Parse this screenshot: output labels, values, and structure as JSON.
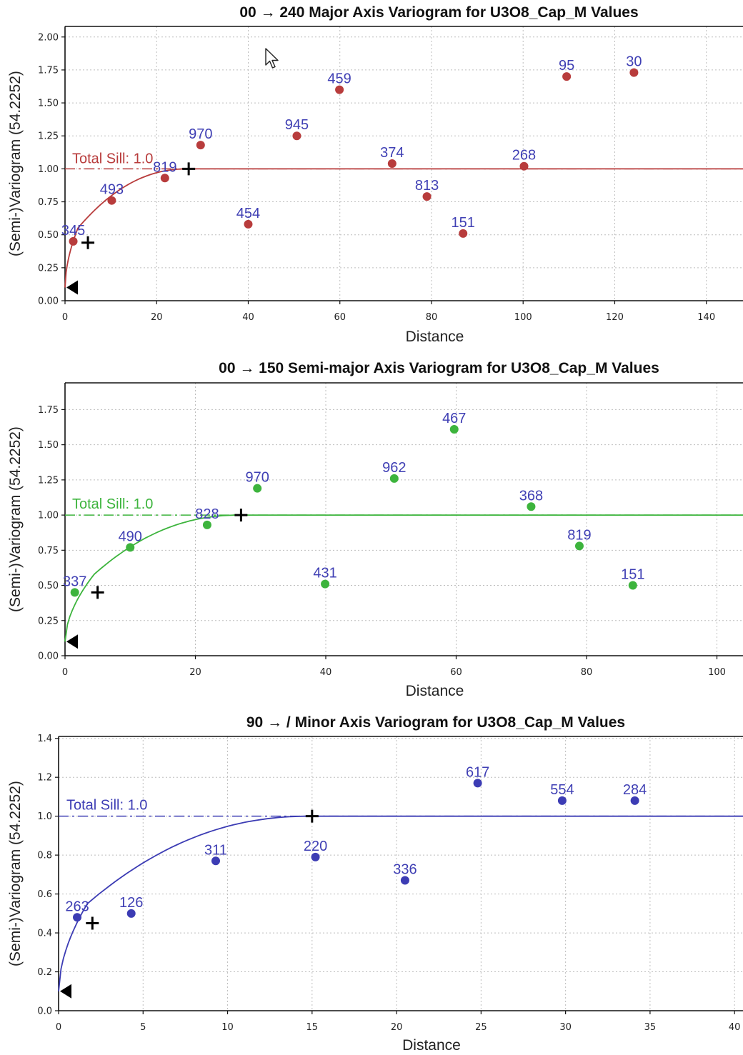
{
  "panels": [
    {
      "id": "major",
      "title": "00 → 240 Major Axis Variogram for U3O8_Cap_M Values",
      "xlabel": "Distance",
      "ylabel": "(Semi-)Variogram (54.2252)",
      "sill_label": "Total Sill: 1.0",
      "color": "#b83c3c",
      "xlim": [
        0,
        148
      ],
      "ylim": [
        0,
        2.08
      ],
      "xticks": [
        0,
        20,
        40,
        60,
        80,
        100,
        120,
        140
      ],
      "yticks": [
        0,
        0.25,
        0.5,
        0.75,
        1.0,
        1.25,
        1.5,
        1.75,
        2.0
      ],
      "ytick_decimals": 2,
      "sill": 1.0,
      "nugget": 0.1,
      "model_break": [
        2.8,
        0.55
      ],
      "range": 27,
      "cross_markers": [
        [
          5,
          0.44
        ],
        [
          27,
          1.0
        ]
      ],
      "points": [
        {
          "x": 1.8,
          "y": 0.45,
          "pairs": "345"
        },
        {
          "x": 10.2,
          "y": 0.76,
          "pairs": "493"
        },
        {
          "x": 21.8,
          "y": 0.93,
          "pairs": "819"
        },
        {
          "x": 29.6,
          "y": 1.18,
          "pairs": "970"
        },
        {
          "x": 40.0,
          "y": 0.58,
          "pairs": "454"
        },
        {
          "x": 50.6,
          "y": 1.25,
          "pairs": "945"
        },
        {
          "x": 59.9,
          "y": 1.6,
          "pairs": "459"
        },
        {
          "x": 71.4,
          "y": 1.04,
          "pairs": "374"
        },
        {
          "x": 79.0,
          "y": 0.79,
          "pairs": "813"
        },
        {
          "x": 86.9,
          "y": 0.51,
          "pairs": "151"
        },
        {
          "x": 100.2,
          "y": 1.02,
          "pairs": "268"
        },
        {
          "x": 109.5,
          "y": 1.7,
          "pairs": "95"
        },
        {
          "x": 124.2,
          "y": 1.73,
          "pairs": "30"
        }
      ]
    },
    {
      "id": "semi-major",
      "title": "00 → 150 Semi-major Axis Variogram for U3O8_Cap_M Values",
      "xlabel": "Distance",
      "ylabel": "(Semi-)Variogram (54.2252)",
      "sill_label": "Total Sill: 1.0",
      "color": "#3db43d",
      "xlim": [
        0,
        104
      ],
      "ylim": [
        0,
        1.94
      ],
      "xticks": [
        0,
        20,
        40,
        60,
        80,
        100
      ],
      "yticks": [
        0,
        0.25,
        0.5,
        0.75,
        1.0,
        1.25,
        1.5,
        1.75
      ],
      "ytick_decimals": 2,
      "sill": 1.0,
      "nugget": 0.1,
      "model_break": [
        4.5,
        0.58
      ],
      "range": 27,
      "cross_markers": [
        [
          5,
          0.45
        ],
        [
          27,
          1.0
        ]
      ],
      "points": [
        {
          "x": 1.5,
          "y": 0.45,
          "pairs": "337"
        },
        {
          "x": 10.0,
          "y": 0.77,
          "pairs": "490"
        },
        {
          "x": 21.8,
          "y": 0.93,
          "pairs": "828"
        },
        {
          "x": 29.5,
          "y": 1.19,
          "pairs": "970"
        },
        {
          "x": 39.9,
          "y": 0.51,
          "pairs": "431"
        },
        {
          "x": 50.5,
          "y": 1.26,
          "pairs": "962"
        },
        {
          "x": 59.7,
          "y": 1.61,
          "pairs": "467"
        },
        {
          "x": 71.5,
          "y": 1.06,
          "pairs": "368"
        },
        {
          "x": 78.9,
          "y": 0.78,
          "pairs": "819"
        },
        {
          "x": 87.1,
          "y": 0.5,
          "pairs": "151"
        }
      ]
    },
    {
      "id": "minor",
      "title": "90 → / Minor Axis Variogram for U3O8_Cap_M Values",
      "xlabel": "Distance",
      "ylabel": "(Semi-)Variogram (54.2252)",
      "sill_label": "Total Sill: 1.0",
      "color": "#3c3cb4",
      "xlim": [
        0,
        40.5
      ],
      "ylim": [
        0,
        1.41
      ],
      "xticks": [
        0,
        5,
        10,
        15,
        20,
        25,
        30,
        35,
        40
      ],
      "yticks": [
        0,
        0.2,
        0.4,
        0.6,
        0.8,
        1.0,
        1.2,
        1.4
      ],
      "ytick_decimals": 1,
      "sill": 1.0,
      "nugget": 0.1,
      "model_break": [
        1.7,
        0.55
      ],
      "range": 15,
      "cross_markers": [
        [
          2,
          0.45
        ],
        [
          15,
          1.0
        ]
      ],
      "points": [
        {
          "x": 1.1,
          "y": 0.48,
          "pairs": "263"
        },
        {
          "x": 4.3,
          "y": 0.5,
          "pairs": "126"
        },
        {
          "x": 9.3,
          "y": 0.77,
          "pairs": "311"
        },
        {
          "x": 15.2,
          "y": 0.79,
          "pairs": "220"
        },
        {
          "x": 20.5,
          "y": 0.67,
          "pairs": "336"
        },
        {
          "x": 24.8,
          "y": 1.17,
          "pairs": "617"
        },
        {
          "x": 29.8,
          "y": 1.08,
          "pairs": "554"
        },
        {
          "x": 34.1,
          "y": 1.08,
          "pairs": "284"
        }
      ]
    }
  ],
  "chart_data": [
    {
      "type": "scatter",
      "title": "00 → 240 Major Axis Variogram for U3O8_Cap_M Values",
      "xlabel": "Distance",
      "ylabel": "(Semi-)Variogram (54.2252)",
      "xlim": [
        0,
        148
      ],
      "ylim": [
        0,
        2.08
      ],
      "grid": true,
      "annotations": [
        "Total Sill: 1.0"
      ],
      "x": [
        1.8,
        10.2,
        21.8,
        29.6,
        40.0,
        50.6,
        59.9,
        71.4,
        79.0,
        86.9,
        100.2,
        109.5,
        124.2
      ],
      "y": [
        0.45,
        0.76,
        0.93,
        1.18,
        0.58,
        1.25,
        1.6,
        1.04,
        0.79,
        0.51,
        1.02,
        1.7,
        1.73
      ],
      "point_labels": [
        "345",
        "493",
        "819",
        "970",
        "454",
        "945",
        "459",
        "374",
        "813",
        "151",
        "268",
        "95",
        "30"
      ]
    },
    {
      "type": "scatter",
      "title": "00 → 150 Semi-major Axis Variogram for U3O8_Cap_M Values",
      "xlabel": "Distance",
      "ylabel": "(Semi-)Variogram (54.2252)",
      "xlim": [
        0,
        104
      ],
      "ylim": [
        0,
        1.94
      ],
      "grid": true,
      "annotations": [
        "Total Sill: 1.0"
      ],
      "x": [
        1.5,
        10.0,
        21.8,
        29.5,
        39.9,
        50.5,
        59.7,
        71.5,
        78.9,
        87.1
      ],
      "y": [
        0.45,
        0.77,
        0.93,
        1.19,
        0.51,
        1.26,
        1.61,
        1.06,
        0.78,
        0.5
      ],
      "point_labels": [
        "337",
        "490",
        "828",
        "970",
        "431",
        "962",
        "467",
        "368",
        "819",
        "151"
      ]
    },
    {
      "type": "scatter",
      "title": "90 → / Minor Axis Variogram for U3O8_Cap_M Values",
      "xlabel": "Distance",
      "ylabel": "(Semi-)Variogram (54.2252)",
      "xlim": [
        0,
        40.5
      ],
      "ylim": [
        0,
        1.41
      ],
      "grid": true,
      "annotations": [
        "Total Sill: 1.0"
      ],
      "x": [
        1.1,
        4.3,
        9.3,
        15.2,
        20.5,
        24.8,
        29.8,
        34.1
      ],
      "y": [
        0.48,
        0.5,
        0.77,
        0.79,
        0.67,
        1.17,
        1.08,
        1.08
      ],
      "point_labels": [
        "263",
        "126",
        "311",
        "220",
        "336",
        "617",
        "554",
        "284"
      ]
    }
  ]
}
